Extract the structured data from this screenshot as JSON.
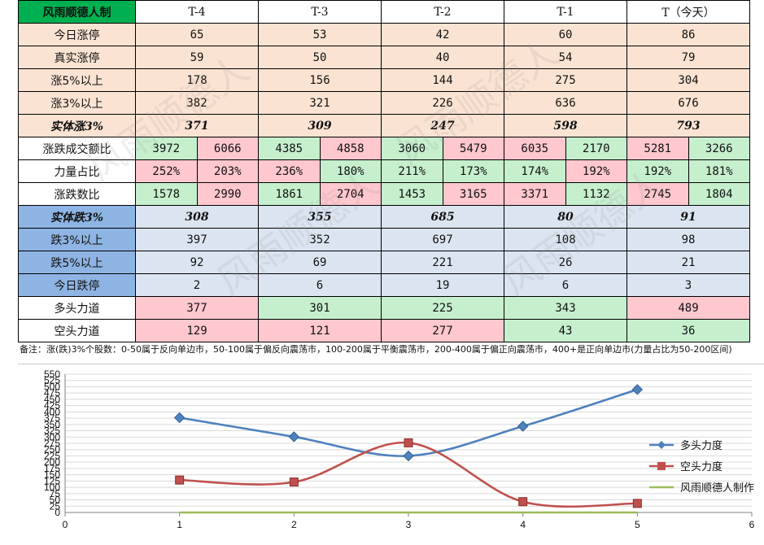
{
  "table": {
    "title": "风雨顺德人制",
    "columns": [
      "T-4",
      "T-3",
      "T-2",
      "T-1",
      "T（今天）"
    ],
    "rows_up": [
      {
        "label": "今日涨停",
        "values": [
          "65",
          "53",
          "42",
          "60",
          "86"
        ]
      },
      {
        "label": "真实涨停",
        "values": [
          "59",
          "50",
          "40",
          "54",
          "79"
        ]
      },
      {
        "label": "涨5%以上",
        "values": [
          "178",
          "156",
          "144",
          "275",
          "304"
        ]
      },
      {
        "label": "涨3%以上",
        "values": [
          "382",
          "321",
          "226",
          "636",
          "676"
        ]
      }
    ],
    "solid_up": {
      "label": "实体涨3%",
      "values": [
        "371",
        "309",
        "247",
        "598",
        "793"
      ]
    },
    "pairs": [
      {
        "label": "涨跌成交额比",
        "values": [
          [
            "3972",
            "6066"
          ],
          [
            "4385",
            "4858"
          ],
          [
            "3060",
            "5479"
          ],
          [
            "6035",
            "2170"
          ],
          [
            "5281",
            "3266"
          ]
        ],
        "cls": [
          [
            "gp",
            "rp"
          ],
          [
            "gp",
            "rp"
          ],
          [
            "gp",
            "rp"
          ],
          [
            "rp",
            "gp"
          ],
          [
            "rp",
            "gp"
          ]
        ]
      },
      {
        "label": "力量占比",
        "values": [
          [
            "252%",
            "203%"
          ],
          [
            "236%",
            "180%"
          ],
          [
            "211%",
            "173%"
          ],
          [
            "174%",
            "192%"
          ],
          [
            "192%",
            "181%"
          ]
        ],
        "cls": [
          [
            "rp",
            "rp"
          ],
          [
            "rp",
            "gp"
          ],
          [
            "gp",
            "gp"
          ],
          [
            "gp",
            "rp"
          ],
          [
            "gp",
            "gp"
          ]
        ]
      },
      {
        "label": "涨跌数比",
        "values": [
          [
            "1578",
            "2990"
          ],
          [
            "1861",
            "2704"
          ],
          [
            "1453",
            "3165"
          ],
          [
            "3371",
            "1132"
          ],
          [
            "2745",
            "1804"
          ]
        ],
        "cls": [
          [
            "gp",
            "rp"
          ],
          [
            "gp",
            "rp"
          ],
          [
            "gp",
            "rp"
          ],
          [
            "rp",
            "gp"
          ],
          [
            "rp",
            "gp"
          ]
        ]
      }
    ],
    "solid_down": {
      "label": "实体跌3%",
      "values": [
        "308",
        "355",
        "685",
        "80",
        "91"
      ]
    },
    "rows_down": [
      {
        "label": "跌3%以上",
        "values": [
          "397",
          "352",
          "697",
          "108",
          "98"
        ]
      },
      {
        "label": "跌5%以上",
        "values": [
          "92",
          "69",
          "221",
          "26",
          "21"
        ]
      },
      {
        "label": "今日跌停",
        "values": [
          "2",
          "6",
          "19",
          "6",
          "3"
        ]
      }
    ],
    "force_long": {
      "label": "多头力道",
      "values": [
        "377",
        "301",
        "225",
        "343",
        "489"
      ],
      "cls": [
        "rp",
        "gp",
        "gp",
        "gp",
        "rp"
      ]
    },
    "force_short": {
      "label": "空头力道",
      "values": [
        "129",
        "121",
        "277",
        "43",
        "36"
      ],
      "cls": [
        "rp",
        "rp",
        "rp",
        "gp",
        "gp"
      ]
    },
    "note": "备注：涨(跌)3%个股数：0-50属于反向单边市，50-100属于偏反向震荡市，100-200属于平衡震荡市，200-400属于偏正向震荡市，400+是正向单边市(力量占比为50-200区间)"
  },
  "watermark": "风雨顺德人",
  "chart_data": {
    "type": "line",
    "x": [
      1,
      2,
      3,
      4,
      5
    ],
    "series": [
      {
        "name": "多头力度",
        "values": [
          377,
          301,
          225,
          343,
          489
        ],
        "color": "#4f81bd",
        "marker": "diamond"
      },
      {
        "name": "空头力度",
        "values": [
          129,
          121,
          277,
          43,
          36
        ],
        "color": "#c0504d",
        "marker": "square"
      },
      {
        "name": "风雨顺德人制作",
        "values": [
          0,
          0,
          0,
          0,
          0
        ],
        "color": "#9bbb59",
        "marker": "none"
      }
    ],
    "xlim": [
      0,
      6
    ],
    "ylim": [
      0,
      550
    ],
    "xticks": [
      "0",
      "1",
      "2",
      "3",
      "4",
      "5",
      "6"
    ],
    "yticks": [
      "0",
      "25",
      "50",
      "75",
      "100",
      "125",
      "150",
      "175",
      "200",
      "225",
      "250",
      "275",
      "300",
      "325",
      "350",
      "375",
      "400",
      "425",
      "450",
      "475",
      "500",
      "525",
      "550"
    ],
    "grid": true,
    "legend": "right"
  }
}
